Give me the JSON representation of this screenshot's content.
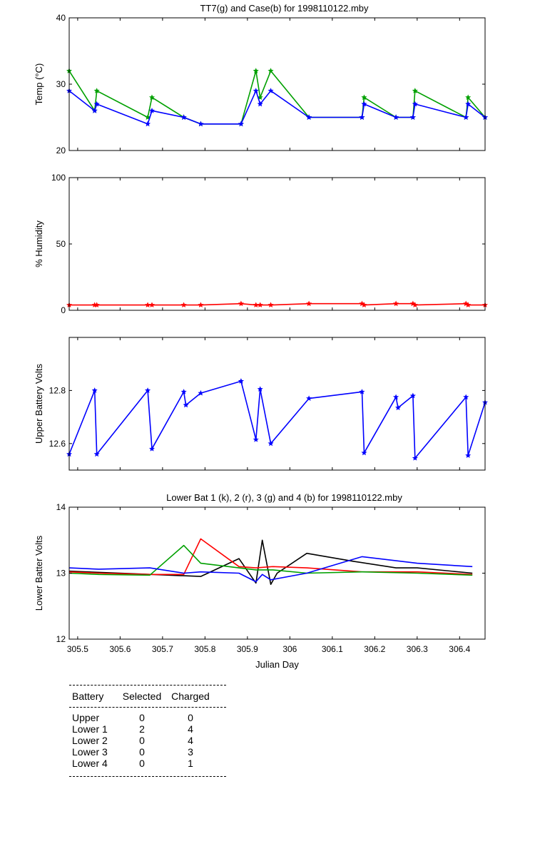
{
  "colors": {
    "k": "#000000",
    "r": "#ff0000",
    "g": "#00a000",
    "b": "#0000ff"
  },
  "chart_data": [
    {
      "id": "temp",
      "type": "line",
      "title": "TT7(g) and Case(b) for 1998110122.mby",
      "xlabel": "",
      "ylabel": "Temp  (°C)",
      "xlim": [
        305.48,
        306.46
      ],
      "ylim": [
        20,
        40
      ],
      "yticks": [
        20,
        30,
        40
      ],
      "ytick_labels": [
        "20",
        "30",
        "40"
      ],
      "series": [
        {
          "name": "TT7",
          "color_key": "g",
          "markers": true,
          "x": [
            305.48,
            305.54,
            305.545,
            305.665,
            305.675,
            305.75,
            305.79,
            305.885,
            305.92,
            305.93,
            305.955,
            306.045,
            306.17,
            306.175,
            306.25,
            306.29,
            306.295,
            306.415,
            306.42,
            306.46
          ],
          "y": [
            32,
            26,
            29,
            25,
            28,
            25,
            24,
            24,
            32,
            28,
            32,
            25,
            25,
            28,
            25,
            25,
            29,
            25,
            28,
            25
          ]
        },
        {
          "name": "Case",
          "color_key": "b",
          "markers": true,
          "x": [
            305.48,
            305.54,
            305.545,
            305.665,
            305.675,
            305.75,
            305.79,
            305.885,
            305.92,
            305.93,
            305.955,
            306.045,
            306.17,
            306.175,
            306.25,
            306.29,
            306.295,
            306.415,
            306.42,
            306.46
          ],
          "y": [
            29,
            26,
            27,
            24,
            26,
            25,
            24,
            24,
            29,
            27,
            29,
            25,
            25,
            27,
            25,
            25,
            27,
            25,
            27,
            25
          ]
        }
      ]
    },
    {
      "id": "humidity",
      "type": "line",
      "title": "",
      "xlabel": "",
      "ylabel": "% Humidity",
      "xlim": [
        305.48,
        306.46
      ],
      "ylim": [
        0,
        100
      ],
      "yticks": [
        0,
        50,
        100
      ],
      "ytick_labels": [
        "0",
        "50",
        "100"
      ],
      "series": [
        {
          "name": "Humidity",
          "color_key": "r",
          "markers": true,
          "x": [
            305.48,
            305.54,
            305.545,
            305.665,
            305.675,
            305.75,
            305.79,
            305.885,
            305.92,
            305.93,
            305.955,
            306.045,
            306.17,
            306.175,
            306.25,
            306.29,
            306.295,
            306.415,
            306.42,
            306.46
          ],
          "y": [
            4,
            4,
            4,
            4,
            4,
            4,
            4,
            5,
            4,
            4,
            4,
            5,
            5,
            4,
            5,
            5,
            4,
            5,
            4,
            4
          ]
        }
      ]
    },
    {
      "id": "upper-battery",
      "type": "line",
      "title": "",
      "xlabel": "",
      "ylabel": "Upper Battery Volts",
      "xlim": [
        305.48,
        306.46
      ],
      "ylim": [
        12.5,
        13.0
      ],
      "yticks": [
        12.6,
        12.8
      ],
      "ytick_labels": [
        "12.6",
        "12.8"
      ],
      "series": [
        {
          "name": "Upper",
          "color_key": "b",
          "markers": true,
          "x": [
            305.48,
            305.54,
            305.545,
            305.665,
            305.675,
            305.75,
            305.755,
            305.79,
            305.885,
            305.92,
            305.93,
            305.955,
            306.045,
            306.17,
            306.175,
            306.25,
            306.255,
            306.29,
            306.295,
            306.415,
            306.42,
            306.46
          ],
          "y": [
            12.56,
            12.8,
            12.56,
            12.8,
            12.58,
            12.795,
            12.745,
            12.79,
            12.835,
            12.615,
            12.805,
            12.6,
            12.77,
            12.795,
            12.565,
            12.775,
            12.735,
            12.78,
            12.545,
            12.775,
            12.555,
            12.755
          ]
        }
      ]
    },
    {
      "id": "lower-battery",
      "type": "line",
      "title": "Lower Bat 1 (k), 2 (r), 3 (g) and 4 (b) for 1998110122.mby",
      "xlabel": "Julian Day",
      "ylabel": "Lower Batter Volts",
      "xlim": [
        305.48,
        306.46
      ],
      "ylim": [
        12,
        14
      ],
      "yticks": [
        12,
        13,
        14
      ],
      "ytick_labels": [
        "12",
        "13",
        "14"
      ],
      "series": [
        {
          "name": "Lower 1",
          "color_key": "k",
          "markers": false,
          "x": [
            305.48,
            305.6,
            305.79,
            305.88,
            305.92,
            305.935,
            305.955,
            305.97,
            306.04,
            306.15,
            306.25,
            306.3,
            306.43
          ],
          "y": [
            13.03,
            13.0,
            12.95,
            13.22,
            12.85,
            13.5,
            12.83,
            13.0,
            13.3,
            13.18,
            13.08,
            13.08,
            13.0
          ]
        },
        {
          "name": "Lower 2",
          "color_key": "r",
          "markers": false,
          "x": [
            305.48,
            305.55,
            305.67,
            305.75,
            305.79,
            305.88,
            305.92,
            305.96,
            306.04,
            306.17,
            306.3,
            306.43
          ],
          "y": [
            13.02,
            13.0,
            12.98,
            12.98,
            13.52,
            13.1,
            13.08,
            13.1,
            13.08,
            13.02,
            13.02,
            12.98
          ]
        },
        {
          "name": "Lower 3",
          "color_key": "g",
          "markers": false,
          "x": [
            305.48,
            305.55,
            305.67,
            305.75,
            305.79,
            305.88,
            305.92,
            305.96,
            306.04,
            306.17,
            306.3,
            306.43
          ],
          "y": [
            13.0,
            12.98,
            12.97,
            13.42,
            13.15,
            13.08,
            13.05,
            13.05,
            13.0,
            13.02,
            13.0,
            12.97
          ]
        },
        {
          "name": "Lower 4",
          "color_key": "b",
          "markers": false,
          "x": [
            305.48,
            305.55,
            305.67,
            305.75,
            305.79,
            305.88,
            305.92,
            305.935,
            305.955,
            306.04,
            306.17,
            306.3,
            306.43
          ],
          "y": [
            13.08,
            13.06,
            13.08,
            13.0,
            13.02,
            13.0,
            12.87,
            12.98,
            12.9,
            13.0,
            13.25,
            13.15,
            13.1
          ]
        }
      ]
    }
  ],
  "x_axis": {
    "ticks": [
      305.5,
      305.6,
      305.7,
      305.8,
      305.9,
      306.0,
      306.1,
      306.2,
      306.3,
      306.4
    ],
    "tick_labels": [
      "305.5",
      "305.6",
      "305.7",
      "305.8",
      "305.9",
      "306",
      "306.1",
      "306.2",
      "306.3",
      "306.4"
    ]
  },
  "battery_table": {
    "headers": {
      "battery": "Battery",
      "selected": "Selected",
      "charged": "Charged"
    },
    "rows": [
      {
        "battery": "Upper",
        "selected": "0",
        "charged": "0"
      },
      {
        "battery": "Lower 1",
        "selected": "2",
        "charged": "4"
      },
      {
        "battery": "Lower 2",
        "selected": "0",
        "charged": "4"
      },
      {
        "battery": "Lower 3",
        "selected": "0",
        "charged": "3"
      },
      {
        "battery": "Lower 4",
        "selected": "0",
        "charged": "1"
      }
    ]
  }
}
